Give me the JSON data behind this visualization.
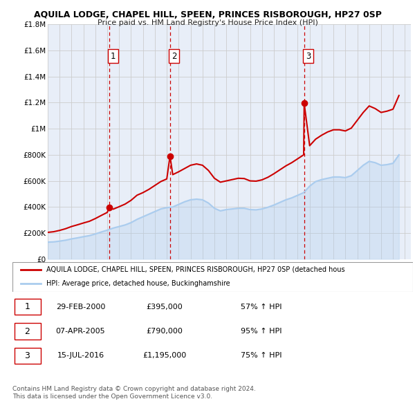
{
  "title": "AQUILA LODGE, CHAPEL HILL, SPEEN, PRINCES RISBOROUGH, HP27 0SP",
  "subtitle": "Price paid vs. HM Land Registry's House Price Index (HPI)",
  "ylim": [
    0,
    1800000
  ],
  "yticks": [
    0,
    200000,
    400000,
    600000,
    800000,
    1000000,
    1200000,
    1400000,
    1600000,
    1800000
  ],
  "ytick_labels": [
    "£0",
    "£200K",
    "£400K",
    "£600K",
    "£800K",
    "£1M",
    "£1.2M",
    "£1.4M",
    "£1.6M",
    "£1.8M"
  ],
  "xmin": 1995.0,
  "xmax": 2025.5,
  "sale_color": "#cc0000",
  "hpi_color": "#aaccee",
  "vline_color": "#cc0000",
  "fig_bg": "#ffffff",
  "plot_bg": "#e8eef8",
  "grid_color": "#cccccc",
  "sale_dates_num": [
    2000.16,
    2005.27,
    2016.54
  ],
  "sale_prices": [
    395000,
    790000,
    1195000
  ],
  "sale_labels": [
    "1",
    "2",
    "3"
  ],
  "legend_label_red": "AQUILA LODGE, CHAPEL HILL, SPEEN, PRINCES RISBOROUGH, HP27 0SP (detached hous",
  "legend_label_blue": "HPI: Average price, detached house, Buckinghamshire",
  "table_data": [
    [
      "1",
      "29-FEB-2000",
      "£395,000",
      "57% ↑ HPI"
    ],
    [
      "2",
      "07-APR-2005",
      "£790,000",
      "95% ↑ HPI"
    ],
    [
      "3",
      "15-JUL-2016",
      "£1,195,000",
      "75% ↑ HPI"
    ]
  ],
  "footnote": "Contains HM Land Registry data © Crown copyright and database right 2024.\nThis data is licensed under the Open Government Licence v3.0.",
  "hpi_x": [
    1995.0,
    1995.5,
    1996.0,
    1996.5,
    1997.0,
    1997.5,
    1998.0,
    1998.5,
    1999.0,
    1999.5,
    2000.0,
    2000.5,
    2001.0,
    2001.5,
    2002.0,
    2002.5,
    2003.0,
    2003.5,
    2004.0,
    2004.5,
    2005.0,
    2005.5,
    2006.0,
    2006.5,
    2007.0,
    2007.5,
    2008.0,
    2008.5,
    2009.0,
    2009.5,
    2010.0,
    2010.5,
    2011.0,
    2011.5,
    2012.0,
    2012.5,
    2013.0,
    2013.5,
    2014.0,
    2014.5,
    2015.0,
    2015.5,
    2016.0,
    2016.5,
    2017.0,
    2017.5,
    2018.0,
    2018.5,
    2019.0,
    2019.5,
    2020.0,
    2020.5,
    2021.0,
    2021.5,
    2022.0,
    2022.5,
    2023.0,
    2023.5,
    2024.0,
    2024.5
  ],
  "hpi_y": [
    130000,
    132000,
    138000,
    145000,
    155000,
    163000,
    172000,
    180000,
    193000,
    208000,
    222000,
    238000,
    250000,
    262000,
    280000,
    305000,
    325000,
    345000,
    365000,
    385000,
    395000,
    400000,
    420000,
    440000,
    455000,
    460000,
    455000,
    430000,
    390000,
    370000,
    380000,
    385000,
    390000,
    390000,
    380000,
    378000,
    385000,
    398000,
    415000,
    435000,
    455000,
    470000,
    490000,
    510000,
    560000,
    595000,
    610000,
    620000,
    630000,
    630000,
    625000,
    640000,
    680000,
    720000,
    750000,
    740000,
    720000,
    725000,
    735000,
    800000
  ],
  "red_x": [
    1995.0,
    1995.5,
    1996.0,
    1996.5,
    1997.0,
    1997.5,
    1998.0,
    1998.5,
    1999.0,
    1999.5,
    2000.0,
    2000.16,
    2000.5,
    2001.0,
    2001.5,
    2002.0,
    2002.5,
    2003.0,
    2003.5,
    2004.0,
    2004.5,
    2005.0,
    2005.27,
    2005.5,
    2006.0,
    2006.5,
    2007.0,
    2007.5,
    2008.0,
    2008.5,
    2009.0,
    2009.5,
    2010.0,
    2010.5,
    2011.0,
    2011.5,
    2012.0,
    2012.5,
    2013.0,
    2013.5,
    2014.0,
    2014.5,
    2015.0,
    2015.5,
    2016.0,
    2016.5,
    2016.54,
    2017.0,
    2017.5,
    2018.0,
    2018.5,
    2019.0,
    2019.5,
    2020.0,
    2020.5,
    2021.0,
    2021.5,
    2022.0,
    2022.5,
    2023.0,
    2023.5,
    2024.0,
    2024.5
  ],
  "red_y": [
    205000,
    210000,
    220000,
    233000,
    250000,
    263000,
    277000,
    290000,
    311000,
    335000,
    358000,
    395000,
    383000,
    402000,
    422000,
    451000,
    490000,
    510000,
    535000,
    565000,
    595000,
    615000,
    790000,
    648000,
    670000,
    695000,
    720000,
    730000,
    720000,
    680000,
    620000,
    590000,
    600000,
    610000,
    620000,
    618000,
    600000,
    598000,
    608000,
    628000,
    655000,
    685000,
    715000,
    740000,
    770000,
    800000,
    1195000,
    870000,
    920000,
    950000,
    975000,
    992000,
    992000,
    983000,
    1005000,
    1065000,
    1125000,
    1175000,
    1155000,
    1125000,
    1135000,
    1150000,
    1255000
  ]
}
